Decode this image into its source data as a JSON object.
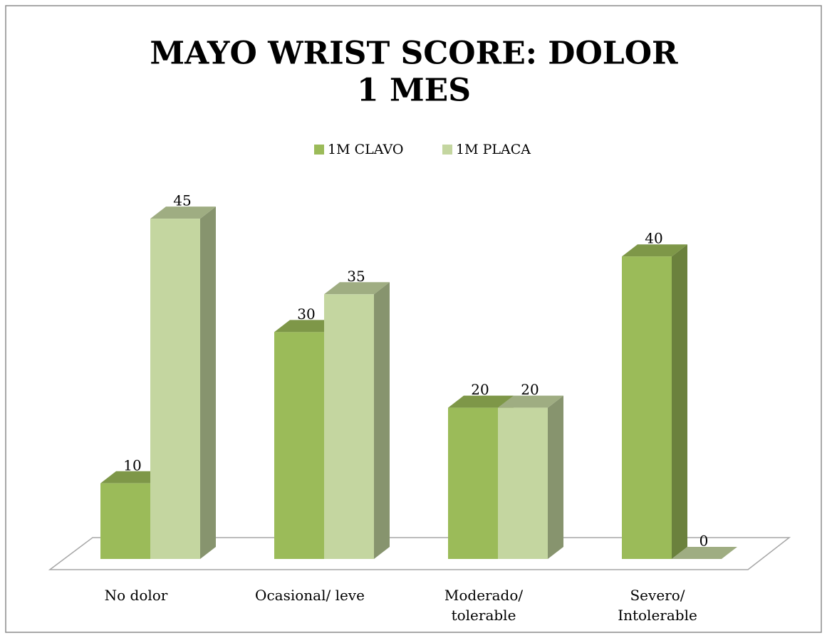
{
  "chart_data": {
    "type": "bar3d",
    "title": [
      "MAYO WRIST SCORE: DOLOR",
      "1 MES"
    ],
    "categories": [
      "No dolor",
      "Ocasional/ leve",
      "Moderado/ tolerable",
      "Severo/ Intolerable"
    ],
    "series": [
      {
        "name": "1M CLAVO",
        "color": "#9bbb59",
        "values": [
          10,
          30,
          20,
          40
        ]
      },
      {
        "name": "1M PLACA",
        "color": "#c4d6a0",
        "values": [
          45,
          35,
          20,
          0
        ]
      }
    ],
    "legend": "top"
  }
}
